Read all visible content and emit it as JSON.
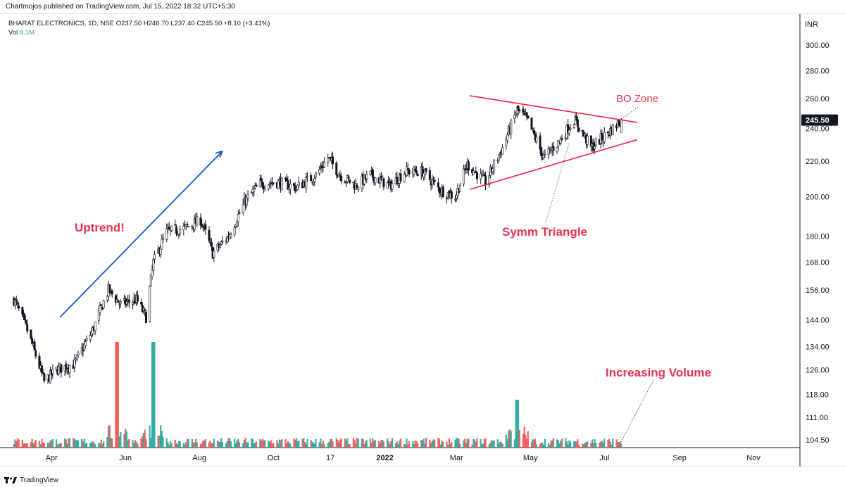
{
  "header": {
    "published": "Chartmojos published on TradingView.com, Jul 15, 2022 18:32 UTC+5:30"
  },
  "legend": {
    "symbol_line": "BHARAT ELECTRONICS, 1D, NSE  O237.50  H246.70  L237.40  C245.50  +8.10 (+3.41%)",
    "vol_label": "Vol",
    "vol_value": "8.1M"
  },
  "footer": {
    "brand": "TradingView",
    "logo_icon": "tradingview-logo-icon"
  },
  "colors": {
    "up": "#26a69a",
    "down": "#ef5350",
    "candle": "#131722",
    "trend_blue": "#1155dd",
    "triangle_red": "#ee2244",
    "annotation_red": "#e8344e"
  },
  "chart_data": {
    "type": "candlestick",
    "currency_label": "INR",
    "last_price_label": "245.50",
    "y_scale": "log",
    "ylim": [
      100,
      320
    ],
    "y_ticks": [
      "300.00",
      "280.00",
      "260.00",
      "240.00",
      "220.00",
      "200.00",
      "180.00",
      "168.00",
      "156.00",
      "144.00",
      "134.00",
      "126.00",
      "118.00",
      "111.00",
      "104.50"
    ],
    "x_ticks": [
      "Apr",
      "Jun",
      "Aug",
      "Oct",
      "17",
      "2022",
      "Mar",
      "May",
      "Jul",
      "Sep",
      "Nov"
    ],
    "price_path": [
      {
        "date": "2021-03-01",
        "close": 152
      },
      {
        "date": "2021-03-12",
        "close": 140
      },
      {
        "date": "2021-03-26",
        "close": 122
      },
      {
        "date": "2021-04-05",
        "close": 126
      },
      {
        "date": "2021-04-20",
        "close": 128
      },
      {
        "date": "2021-05-05",
        "close": 140
      },
      {
        "date": "2021-05-18",
        "close": 156
      },
      {
        "date": "2021-05-28",
        "close": 150
      },
      {
        "date": "2021-06-10",
        "close": 152
      },
      {
        "date": "2021-06-18",
        "close": 145
      },
      {
        "date": "2021-06-24",
        "close": 168
      },
      {
        "date": "2021-07-05",
        "close": 182
      },
      {
        "date": "2021-07-20",
        "close": 184
      },
      {
        "date": "2021-08-02",
        "close": 188
      },
      {
        "date": "2021-08-12",
        "close": 172
      },
      {
        "date": "2021-08-25",
        "close": 180
      },
      {
        "date": "2021-09-08",
        "close": 198
      },
      {
        "date": "2021-09-20",
        "close": 207
      },
      {
        "date": "2021-10-05",
        "close": 208
      },
      {
        "date": "2021-10-20",
        "close": 205
      },
      {
        "date": "2021-11-05",
        "close": 212
      },
      {
        "date": "2021-11-15",
        "close": 222
      },
      {
        "date": "2021-11-25",
        "close": 212
      },
      {
        "date": "2021-12-08",
        "close": 206
      },
      {
        "date": "2021-12-20",
        "close": 212
      },
      {
        "date": "2022-01-05",
        "close": 206
      },
      {
        "date": "2022-01-18",
        "close": 214
      },
      {
        "date": "2022-02-01",
        "close": 214
      },
      {
        "date": "2022-02-15",
        "close": 204
      },
      {
        "date": "2022-02-28",
        "close": 200
      },
      {
        "date": "2022-03-10",
        "close": 218
      },
      {
        "date": "2022-03-25",
        "close": 208
      },
      {
        "date": "2022-04-08",
        "close": 228
      },
      {
        "date": "2022-04-20",
        "close": 252
      },
      {
        "date": "2022-04-28",
        "close": 246
      },
      {
        "date": "2022-05-12",
        "close": 222
      },
      {
        "date": "2022-05-25",
        "close": 232
      },
      {
        "date": "2022-06-06",
        "close": 246
      },
      {
        "date": "2022-06-20",
        "close": 228
      },
      {
        "date": "2022-07-05",
        "close": 238
      },
      {
        "date": "2022-07-15",
        "close": 245.5
      }
    ],
    "volume_spikes": [
      {
        "date": "2021-05-25",
        "color": "down",
        "level": "high"
      },
      {
        "date": "2021-06-24",
        "color": "up",
        "level": "high"
      },
      {
        "date": "2022-04-20",
        "color": "up",
        "level": "medium"
      }
    ],
    "annotations": {
      "uptrend": "Uptrend!",
      "bo_zone": "BO Zone",
      "symm_triangle": "Symm Triangle",
      "increasing_volume": "Increasing Volume"
    },
    "trendlines": {
      "uptrend_arrow": {
        "from": {
          "date": "2021-04-08",
          "price": 145
        },
        "to": {
          "date": "2021-08-20",
          "price": 226
        }
      },
      "triangle_upper": {
        "from": {
          "date": "2022-03-12",
          "price": 262
        },
        "to": {
          "date": "2022-07-28",
          "price": 244
        }
      },
      "triangle_lower": {
        "from": {
          "date": "2022-03-12",
          "price": 204
        },
        "to": {
          "date": "2022-07-28",
          "price": 233
        }
      }
    }
  }
}
